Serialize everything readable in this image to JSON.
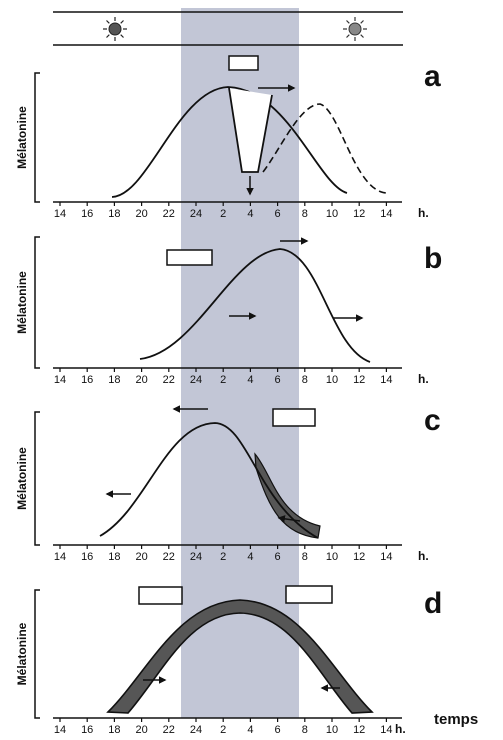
{
  "figure": {
    "y_axis_label": "Mélatonine",
    "time_unit": "h.",
    "time_label": "temps",
    "icons": [
      "sun-icon",
      "sun-icon"
    ],
    "colors": {
      "night_band": "#c2c6d6",
      "dark_fill": "#565656",
      "line": "#111111"
    }
  },
  "panels": [
    {
      "letter": "a",
      "ticks": [
        "14",
        "16",
        "18",
        "20",
        "22",
        "24",
        "2",
        "4",
        "6",
        "8",
        "10",
        "12",
        "14"
      ],
      "arrows": [
        "right",
        "down"
      ]
    },
    {
      "letter": "b",
      "ticks": [
        "14",
        "16",
        "18",
        "20",
        "22",
        "24",
        "2",
        "4",
        "6",
        "8",
        "10",
        "12",
        "14"
      ],
      "arrows": [
        "right",
        "right",
        "right"
      ]
    },
    {
      "letter": "c",
      "ticks": [
        "14",
        "16",
        "18",
        "20",
        "22",
        "24",
        "2",
        "4",
        "6",
        "8",
        "10",
        "12",
        "14"
      ],
      "arrows": [
        "left",
        "left",
        "left"
      ]
    },
    {
      "letter": "d",
      "ticks": [
        "14",
        "16",
        "18",
        "20",
        "22",
        "24",
        "2",
        "4",
        "6",
        "8",
        "10",
        "12",
        "14"
      ],
      "arrows": [
        "right",
        "left"
      ]
    }
  ]
}
